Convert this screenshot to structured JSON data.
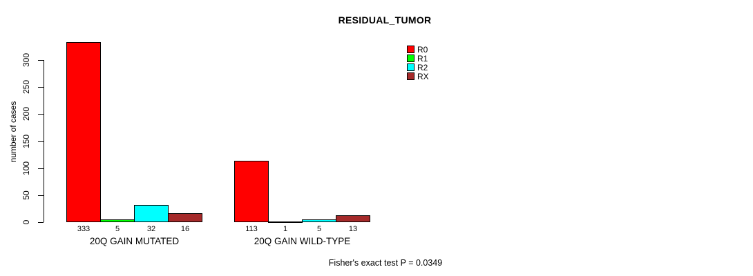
{
  "title": "RESIDUAL_TUMOR",
  "footnote": "Fisher's exact test P = 0.0349",
  "chart_data": {
    "type": "bar",
    "title": "RESIDUAL_TUMOR",
    "xlabel": "",
    "ylabel": "number of cases",
    "ylim": [
      0,
      300
    ],
    "yticks": [
      0,
      50,
      100,
      150,
      200,
      250,
      300
    ],
    "grid": false,
    "legend_position": "top-right",
    "bar_value_labels": true,
    "categories": [
      "20Q GAIN MUTATED",
      "20Q GAIN WILD-TYPE"
    ],
    "series": [
      {
        "name": "R0",
        "color": "#FF0000",
        "values": [
          333,
          113
        ]
      },
      {
        "name": "R1",
        "color": "#00FF00",
        "values": [
          5,
          1
        ]
      },
      {
        "name": "R2",
        "color": "#00FFFF",
        "values": [
          32,
          5
        ]
      },
      {
        "name": "RX",
        "color": "#A52A2A",
        "values": [
          16,
          13
        ]
      }
    ],
    "annotation": "Fisher's exact test P = 0.0349"
  }
}
